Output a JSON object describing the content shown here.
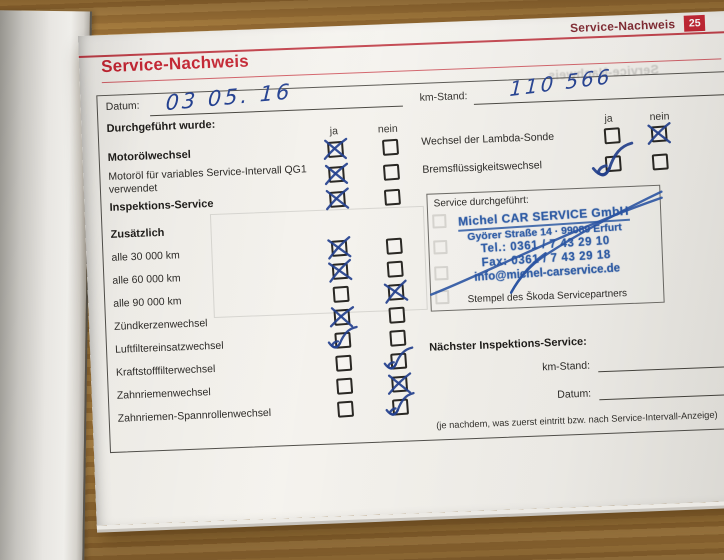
{
  "page": {
    "header_tab": "Service-Nachweis",
    "page_number": "25",
    "title": "Service-Nachweis",
    "bleedthrough_text": "Service-Nachweis"
  },
  "form": {
    "datum_label": "Datum:",
    "datum_value": "03 05. 16",
    "km_stand_label": "km-Stand:",
    "km_stand_value": "110 566",
    "section_label": "Durchgeführt wurde:",
    "col_ja": "ja",
    "col_nein": "nein",
    "left_items": [
      {
        "label": "Motorölwechsel",
        "style": "bold",
        "checked": "ja",
        "mark": "x"
      },
      {
        "label": "Motoröl für variables Service-Intervall QG1 verwendet",
        "style": "normal",
        "checked": "ja",
        "mark": "x"
      },
      {
        "label": "Inspektions-Service",
        "style": "bold",
        "checked": "ja",
        "mark": "x"
      },
      {
        "label": "Zusätzlich",
        "style": "heading"
      },
      {
        "label": "alle 30 000 km",
        "style": "normal",
        "checked": "ja",
        "mark": "x"
      },
      {
        "label": "alle 60 000 km",
        "style": "normal",
        "checked": "ja",
        "mark": "x"
      },
      {
        "label": "alle 90 000 km",
        "style": "normal",
        "checked": "nein",
        "mark": "x"
      },
      {
        "label": "Zündkerzenwechsel",
        "style": "normal",
        "checked": "ja",
        "mark": "x"
      },
      {
        "label": "Luftfiltereinsatzwechsel",
        "style": "normal",
        "checked": "ja",
        "mark": "check"
      },
      {
        "label": "Kraftstofffilterwechsel",
        "style": "normal",
        "checked": "nein",
        "mark": "check"
      },
      {
        "label": "Zahnriemenwechsel",
        "style": "normal",
        "checked": "nein",
        "mark": "x"
      },
      {
        "label": "Zahnriemen-Spannrollenwechsel",
        "style": "normal",
        "checked": "nein",
        "mark": "check"
      }
    ],
    "right_items": [
      {
        "label": "Wechsel der Lambda-Sonde",
        "checked": "nein",
        "mark": "x"
      },
      {
        "label": "Bremsflüssigkeitswechsel",
        "checked": "ja",
        "mark": "check_big"
      }
    ],
    "stamp": {
      "label": "Service durchgeführt:",
      "lines": [
        "Michel CAR SERVICE GmbH",
        "Györer Straße 14 · 99089 Erfurt",
        "Tel.: 0361 / 7 43 29 10",
        "Fax: 0361 / 7 43 29 18",
        "info@michel-carservice.de"
      ],
      "caption": "Stempel des Škoda Servicepartners"
    },
    "next_service": {
      "title": "Nächster Inspektions-Service:",
      "km_label": "km-Stand:",
      "datum_label": "Datum:",
      "note": "(je nachdem, was zuerst eintritt bzw. nach Service-Intervall-Anzeige)"
    }
  },
  "colors": {
    "accent_red": "#c21927",
    "badge_red": "#bf1322",
    "pen_blue": "#24418f",
    "stamp_blue": "#2f5da8"
  }
}
